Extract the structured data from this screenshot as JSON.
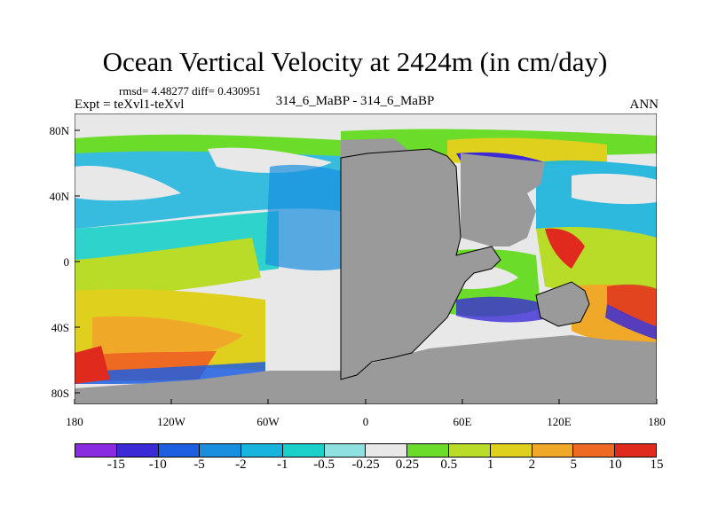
{
  "title": "Ocean Vertical Velocity at 2424m (in cm/day)",
  "stats": "rmsd= 4.48277 diff= 0.430951",
  "expt": "Expt = teXvl1-teXvl",
  "subtitle": "314_6_MaBP - 314_6_MaBP",
  "season": "ANN",
  "lat_ticks": [
    "80N",
    "40N",
    "0",
    "40S",
    "80S"
  ],
  "lon_ticks": [
    "180",
    "120W",
    "60W",
    "0",
    "60E",
    "120E",
    "180"
  ],
  "legend": {
    "labels": [
      "-15",
      "-10",
      "-5",
      "-2",
      "-1",
      "-0.5",
      "-0.25",
      "0.25",
      "0.5",
      "1",
      "2",
      "5",
      "10",
      "15"
    ],
    "colors": [
      "#8a2be2",
      "#3b2ad6",
      "#1e5ee0",
      "#1a8fe0",
      "#18b4dd",
      "#1ad0c8",
      "#8fe0e0",
      "#e8e8e8",
      "#6cdc2a",
      "#b8dc28",
      "#e0d01e",
      "#f0a828",
      "#ee6a22",
      "#e02a1e"
    ]
  },
  "colors": {
    "land": "#9a9a9a",
    "ocean_neutral": "#e8e8e8"
  }
}
